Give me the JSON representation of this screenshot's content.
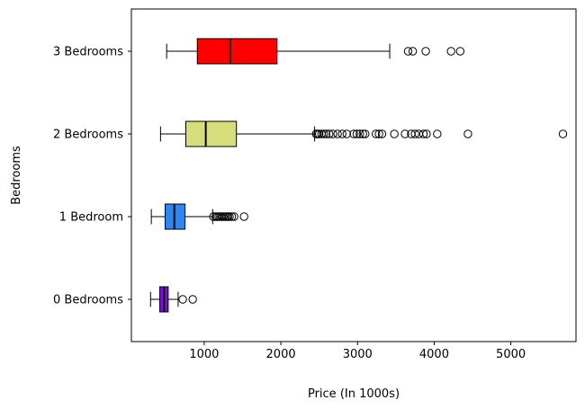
{
  "chart_data": {
    "type": "boxplot",
    "orientation": "horizontal",
    "xlabel": "Price (In 1000s)",
    "ylabel": "Bedrooms",
    "xlim": [
      50,
      5850
    ],
    "xticks": [
      1000,
      2000,
      3000,
      4000,
      5000
    ],
    "xtick_labels": [
      "1000",
      "2000",
      "3000",
      "4000",
      "5000"
    ],
    "grid": false,
    "categories": [
      "0 Bedrooms",
      "1 Bedroom",
      "2 Bedrooms",
      "3 Bedrooms"
    ],
    "series": [
      {
        "category": "0 Bedrooms",
        "color": "#7a0fd6",
        "whisker_low": 300,
        "q1": 420,
        "median": 475,
        "q3": 530,
        "whisker_high": 660,
        "outliers": [
          720,
          850
        ]
      },
      {
        "category": "1 Bedroom",
        "color": "#2f86f0",
        "whisker_low": 310,
        "q1": 490,
        "median": 610,
        "q3": 750,
        "whisker_high": 1110,
        "outliers": [
          1120,
          1150,
          1170,
          1190,
          1210,
          1230,
          1250,
          1270,
          1290,
          1310,
          1330,
          1360,
          1390,
          1520
        ]
      },
      {
        "category": "2 Bedrooms",
        "color": "#d6de7b",
        "whisker_low": 430,
        "q1": 760,
        "median": 1020,
        "q3": 1420,
        "whisker_high": 2440,
        "outliers": [
          2460,
          2480,
          2500,
          2530,
          2560,
          2590,
          2630,
          2680,
          2740,
          2800,
          2860,
          2950,
          2990,
          3030,
          3070,
          3100,
          3240,
          3280,
          3320,
          3480,
          3620,
          3700,
          3750,
          3800,
          3860,
          3900,
          4040,
          4440,
          5680
        ]
      },
      {
        "category": "3 Bedrooms",
        "color": "#ff0000",
        "whisker_low": 510,
        "q1": 910,
        "median": 1340,
        "q3": 1950,
        "whisker_high": 3420,
        "outliers": [
          3660,
          3720,
          3890,
          4220,
          4340
        ]
      }
    ]
  }
}
